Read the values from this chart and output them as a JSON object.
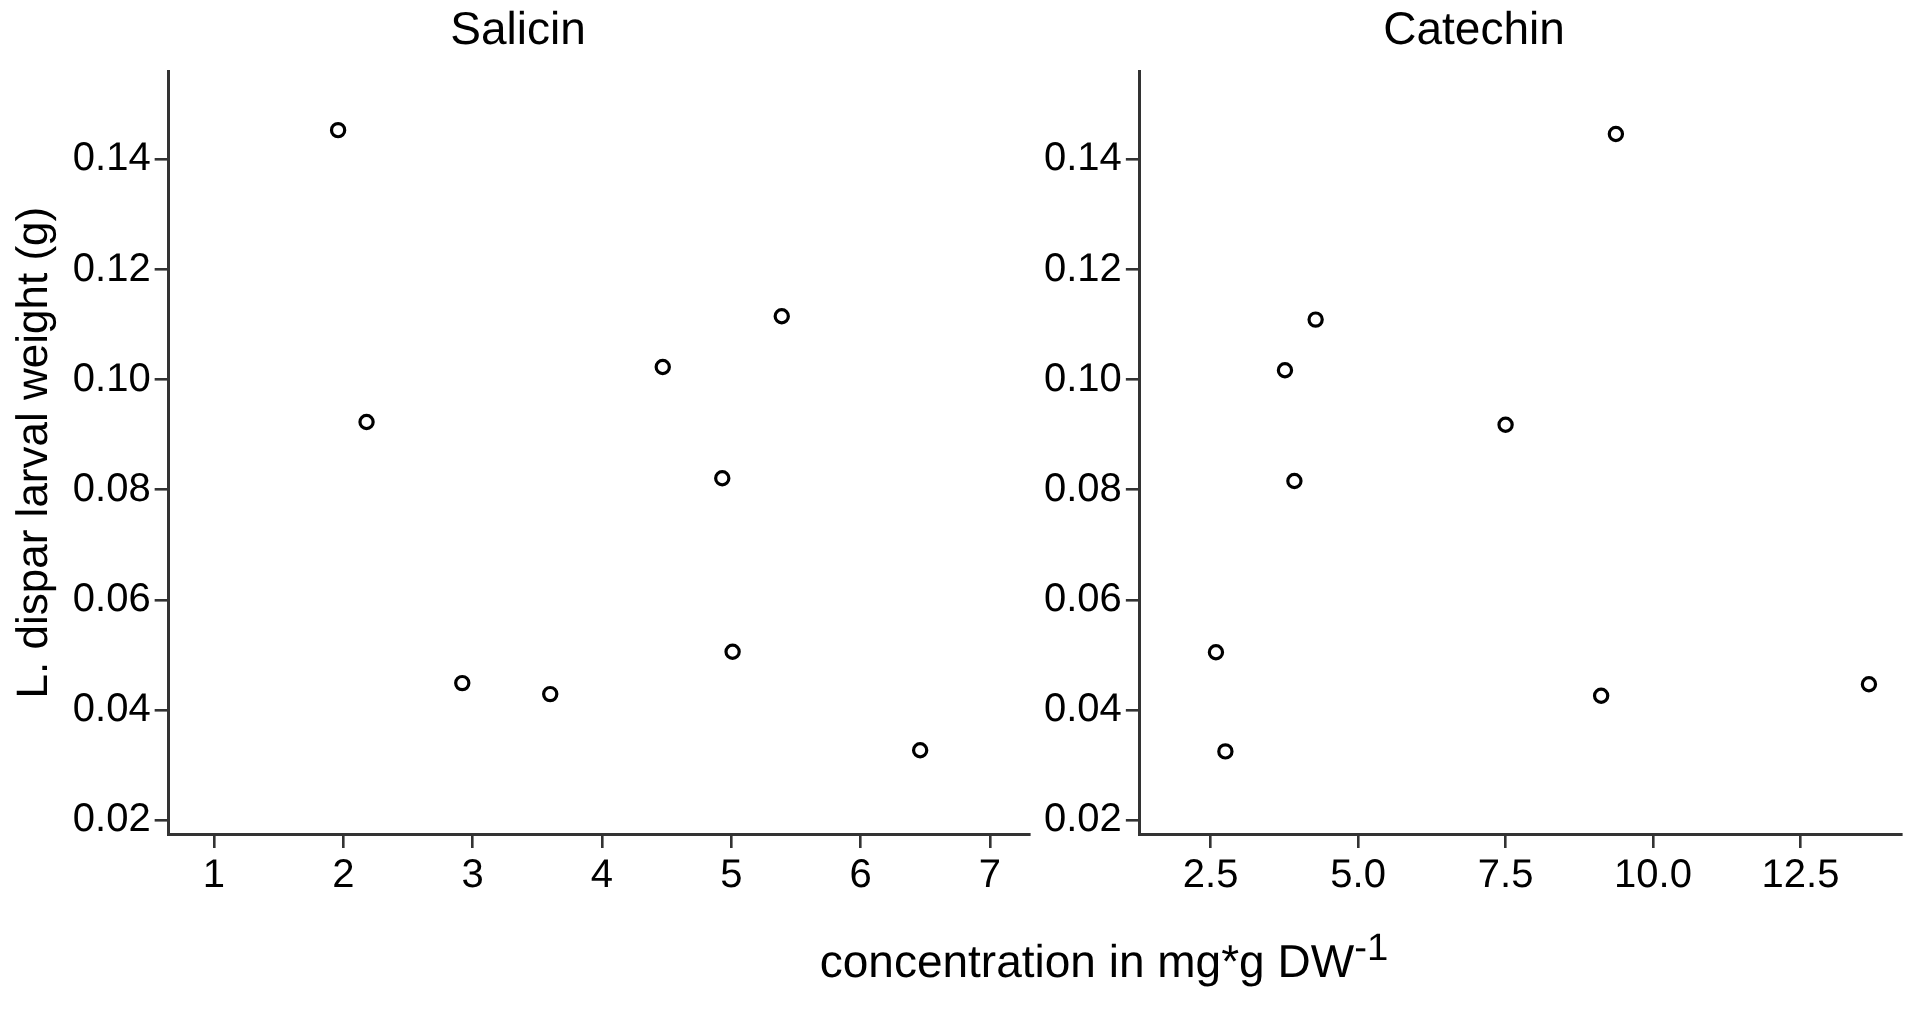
{
  "chart_data": [
    {
      "type": "scatter",
      "title": "Salicin",
      "ylabel": "L. dispar larval weight (g)",
      "xlabel": "concentration in mg*g DW$^{-1}$",
      "marker": "circle",
      "grid": false,
      "x": [
        1.96,
        2.18,
        2.92,
        3.6,
        4.47,
        4.93,
        5.01,
        5.39,
        6.46
      ],
      "series": [
        {
          "color": "#000000",
          "values": [
            0.1453,
            0.0923,
            0.0449,
            0.0429,
            0.1023,
            0.0821,
            0.0506,
            0.1115,
            0.0327
          ]
        }
      ],
      "xlim": [
        0.65,
        7.3
      ],
      "xticks": [
        1,
        2,
        3,
        4,
        5,
        6,
        7
      ],
      "ylim": [
        0.0175,
        0.156
      ],
      "yticks": [
        {
          "value": 0.02,
          "label": "0.02"
        },
        {
          "value": 0.04,
          "label": "0.04"
        },
        {
          "value": 0.06,
          "label": "0.06"
        },
        {
          "value": 0.08,
          "label": "0.08"
        },
        {
          "value": 0.1,
          "label": "0.10"
        },
        {
          "value": 0.12,
          "label": "0.12"
        },
        {
          "value": 0.14,
          "label": "0.14"
        }
      ]
    },
    {
      "type": "scatter",
      "title": "Catechin",
      "marker": "circle",
      "grid": false,
      "x": [
        2.59,
        2.75,
        3.76,
        3.92,
        4.28,
        7.5,
        9.12,
        9.37,
        13.66
      ],
      "series": [
        {
          "color": "#000000",
          "values": [
            0.0505,
            0.0325,
            0.1017,
            0.0816,
            0.1109,
            0.0918,
            0.0426,
            0.1446,
            0.0447
          ]
        }
      ],
      "xlim": [
        1.3,
        14.2
      ],
      "xticks": [
        {
          "value": 2.5,
          "label": "2.5"
        },
        {
          "value": 5,
          "label": "5.0"
        },
        {
          "value": 7.5,
          "label": "7.5"
        },
        {
          "value": 10,
          "label": "10.0"
        },
        {
          "value": 12.5,
          "label": "12.5"
        }
      ],
      "ylim": [
        0.0175,
        0.156
      ],
      "yticks": [
        {
          "value": 0.02,
          "label": "0.02"
        },
        {
          "value": 0.04,
          "label": "0.04"
        },
        {
          "value": 0.06,
          "label": "0.06"
        },
        {
          "value": 0.08,
          "label": "0.08"
        },
        {
          "value": 0.1,
          "label": "0.10"
        },
        {
          "value": 0.12,
          "label": "0.12"
        },
        {
          "value": 0.14,
          "label": "0.14"
        }
      ]
    }
  ]
}
